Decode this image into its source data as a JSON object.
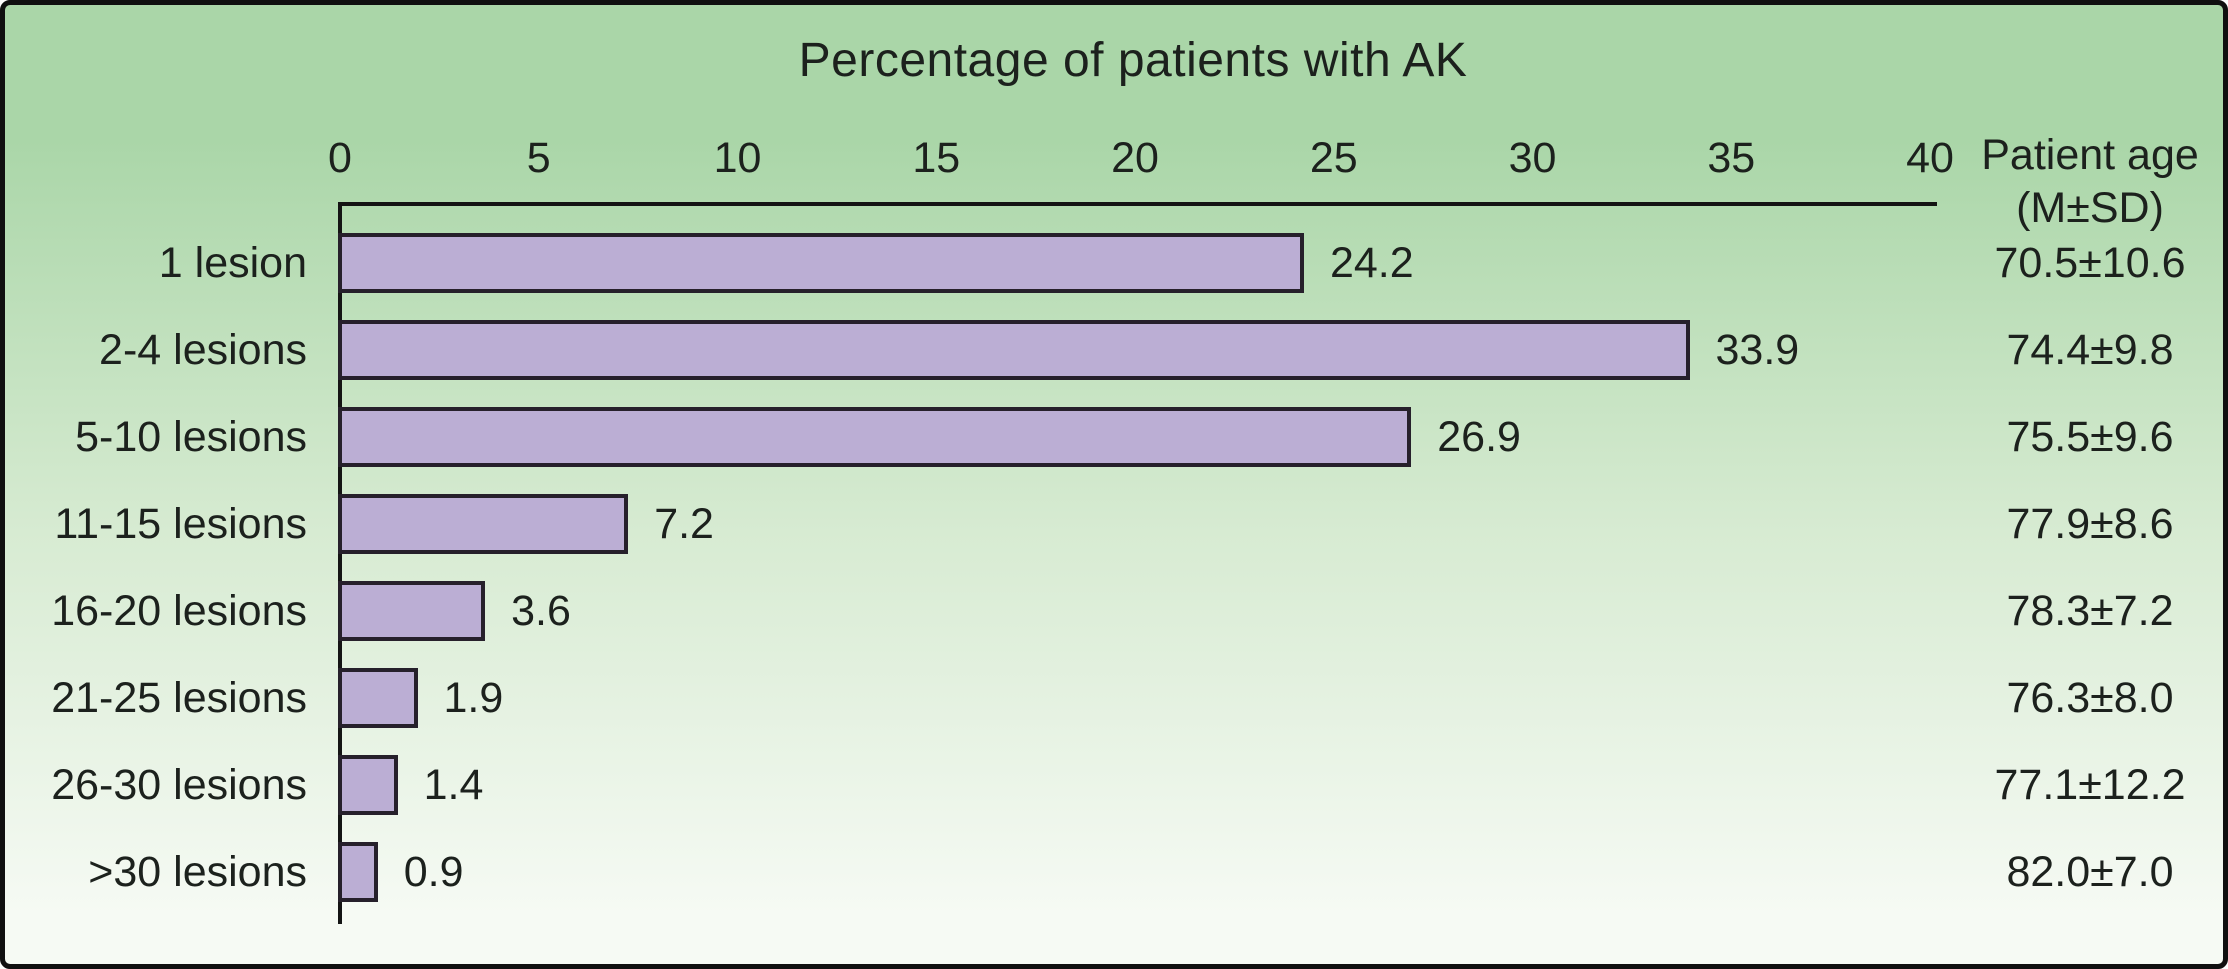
{
  "chart_data": {
    "type": "bar",
    "orientation": "horizontal",
    "title": "Percentage of patients with AK",
    "categories": [
      "1 lesion",
      "2-4 lesions",
      "5-10 lesions",
      "11-15 lesions",
      "16-20 lesions",
      "21-25 lesions",
      "26-30 lesions",
      ">30 lesions"
    ],
    "values": [
      24.2,
      33.9,
      26.9,
      7.2,
      3.6,
      1.9,
      1.4,
      0.9
    ],
    "value_labels": [
      "24.2",
      "33.9",
      "26.9",
      "7.2",
      "3.6",
      "1.9",
      "1.4",
      "0.9"
    ],
    "age_column_header": {
      "line1": "Patient age",
      "line2": "(M±SD)"
    },
    "patient_ages": [
      "70.5±10.6",
      "74.4±9.8",
      "75.5±9.6",
      "77.9±8.6",
      "78.3±7.2",
      "76.3±8.0",
      "77.1±12.2",
      "82.0±7.0"
    ],
    "x_ticks": [
      0,
      5,
      10,
      15,
      20,
      25,
      30,
      35,
      40
    ],
    "xlim": [
      0,
      40
    ],
    "grid": false,
    "legend": null,
    "colors": {
      "bar_fill": "#bbaed4",
      "bar_border": "#26202b",
      "axis": "#141414",
      "text": "#1c211d",
      "background_top": "#aad6a8",
      "background_mid": "#d7ebd2",
      "background_bottom": "#f6faf4"
    }
  }
}
